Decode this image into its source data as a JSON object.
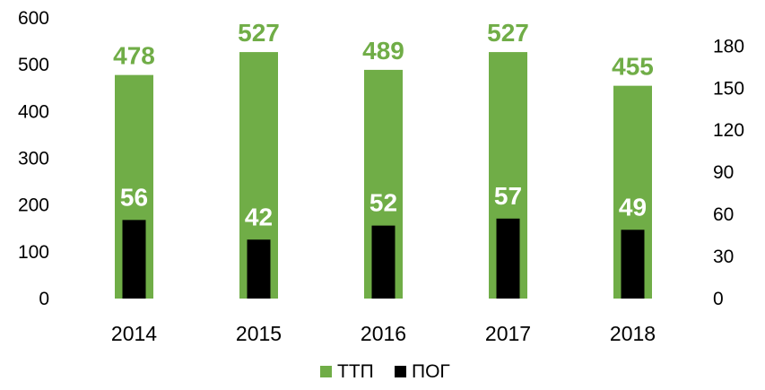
{
  "chart_data": {
    "type": "bar",
    "title": "",
    "xlabel": "",
    "ylabel": "",
    "categories": [
      "2014",
      "2015",
      "2016",
      "2017",
      "2018"
    ],
    "series": [
      {
        "name": "ТТП",
        "axis": "left",
        "color": "#70AD47",
        "label_color": "#70AD47",
        "values": [
          478,
          527,
          489,
          527,
          455
        ]
      },
      {
        "name": "ПОГ",
        "axis": "right",
        "color": "#000000",
        "label_color": "#FFFFFF",
        "values": [
          56,
          42,
          52,
          57,
          49
        ]
      }
    ],
    "ylim": [
      0,
      600
    ],
    "yticks": [
      0,
      100,
      200,
      300,
      400,
      500,
      600
    ],
    "y2lim": [
      0,
      200
    ],
    "y2ticks": [
      0,
      30,
      60,
      90,
      120,
      150,
      180
    ],
    "grid": false,
    "legend": "bottom",
    "overlap": true
  }
}
